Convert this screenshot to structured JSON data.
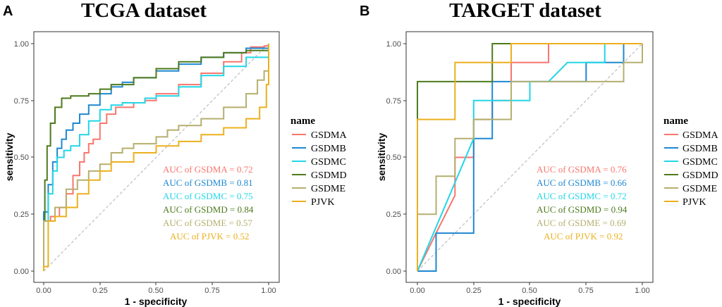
{
  "chart_data": [
    {
      "type": "line",
      "panel_letter": "A",
      "title": "TCGA dataset",
      "xlabel": "1 - specificity",
      "ylabel": "sensitivity",
      "xlim": [
        0,
        1
      ],
      "ylim": [
        0,
        1
      ],
      "xticks": [
        "0.00",
        "0.25",
        "0.50",
        "0.75",
        "1.00"
      ],
      "yticks": [
        "0.00",
        "0.25",
        "0.50",
        "0.75",
        "1.00"
      ],
      "legend_title": "name",
      "legend_position": "right",
      "reference_line": "diagonal dashed",
      "series": [
        {
          "name": "GSDMA",
          "color": "#F8766D",
          "auc_text": "AUC of GSDMA = ",
          "auc": "0.72",
          "points": [
            [
              0,
              0
            ],
            [
              0,
              0.22
            ],
            [
              0.03,
              0.24
            ],
            [
              0.07,
              0.28
            ],
            [
              0.1,
              0.34
            ],
            [
              0.13,
              0.42
            ],
            [
              0.16,
              0.48
            ],
            [
              0.18,
              0.52
            ],
            [
              0.2,
              0.56
            ],
            [
              0.22,
              0.58
            ],
            [
              0.25,
              0.65
            ],
            [
              0.28,
              0.69
            ],
            [
              0.32,
              0.72
            ],
            [
              0.4,
              0.74
            ],
            [
              0.45,
              0.75
            ],
            [
              0.5,
              0.78
            ],
            [
              0.6,
              0.82
            ],
            [
              0.7,
              0.87
            ],
            [
              0.8,
              0.92
            ],
            [
              0.88,
              0.96
            ],
            [
              0.92,
              0.985
            ],
            [
              0.98,
              0.99
            ],
            [
              1,
              1
            ]
          ]
        },
        {
          "name": "GSDMB",
          "color": "#1E88D0",
          "auc_text": "AUC of GSDMB = ",
          "auc": "0.81",
          "points": [
            [
              0,
              0
            ],
            [
              0,
              0.26
            ],
            [
              0.02,
              0.38
            ],
            [
              0.04,
              0.48
            ],
            [
              0.06,
              0.54
            ],
            [
              0.08,
              0.58
            ],
            [
              0.1,
              0.62
            ],
            [
              0.13,
              0.65
            ],
            [
              0.16,
              0.69
            ],
            [
              0.2,
              0.73
            ],
            [
              0.25,
              0.78
            ],
            [
              0.3,
              0.81
            ],
            [
              0.35,
              0.83
            ],
            [
              0.4,
              0.85
            ],
            [
              0.5,
              0.88
            ],
            [
              0.6,
              0.91
            ],
            [
              0.7,
              0.94
            ],
            [
              0.8,
              0.96
            ],
            [
              0.9,
              0.98
            ],
            [
              0.96,
              0.98
            ],
            [
              1,
              1
            ]
          ]
        },
        {
          "name": "GSDMC",
          "color": "#22D6E6",
          "auc_text": "AUC of GSDMC = ",
          "auc": "0.75",
          "points": [
            [
              0,
              0
            ],
            [
              0,
              0.22
            ],
            [
              0.02,
              0.34
            ],
            [
              0.04,
              0.44
            ],
            [
              0.06,
              0.5
            ],
            [
              0.09,
              0.53
            ],
            [
              0.12,
              0.55
            ],
            [
              0.16,
              0.6
            ],
            [
              0.2,
              0.66
            ],
            [
              0.25,
              0.71
            ],
            [
              0.3,
              0.73
            ],
            [
              0.35,
              0.74
            ],
            [
              0.45,
              0.76
            ],
            [
              0.5,
              0.77
            ],
            [
              0.6,
              0.81
            ],
            [
              0.7,
              0.86
            ],
            [
              0.8,
              0.9
            ],
            [
              0.9,
              0.94
            ],
            [
              1,
              1
            ]
          ]
        },
        {
          "name": "GSDMD",
          "color": "#4E7A1C",
          "auc_text": "AUC of GSDMD = ",
          "auc": "0.84",
          "points": [
            [
              0,
              0
            ],
            [
              0,
              0.22
            ],
            [
              0.005,
              0.4
            ],
            [
              0.015,
              0.55
            ],
            [
              0.03,
              0.65
            ],
            [
              0.05,
              0.72
            ],
            [
              0.08,
              0.76
            ],
            [
              0.12,
              0.77
            ],
            [
              0.16,
              0.77
            ],
            [
              0.2,
              0.78
            ],
            [
              0.25,
              0.8
            ],
            [
              0.3,
              0.82
            ],
            [
              0.4,
              0.85
            ],
            [
              0.5,
              0.89
            ],
            [
              0.6,
              0.92
            ],
            [
              0.7,
              0.94
            ],
            [
              0.8,
              0.96
            ],
            [
              0.9,
              0.97
            ],
            [
              1,
              1
            ]
          ]
        },
        {
          "name": "GSDME",
          "color": "#B5AF6E",
          "auc_text": "AUC of GSDME = ",
          "auc": "0.57",
          "points": [
            [
              0,
              0
            ],
            [
              0,
              0.22
            ],
            [
              0.05,
              0.28
            ],
            [
              0.1,
              0.36
            ],
            [
              0.15,
              0.4
            ],
            [
              0.2,
              0.44
            ],
            [
              0.25,
              0.47
            ],
            [
              0.3,
              0.52
            ],
            [
              0.35,
              0.54
            ],
            [
              0.4,
              0.56
            ],
            [
              0.5,
              0.59
            ],
            [
              0.55,
              0.62
            ],
            [
              0.6,
              0.64
            ],
            [
              0.7,
              0.67
            ],
            [
              0.8,
              0.72
            ],
            [
              0.9,
              0.78
            ],
            [
              0.95,
              0.84
            ],
            [
              0.98,
              0.88
            ],
            [
              1,
              1
            ]
          ]
        },
        {
          "name": "PJVK",
          "color": "#EBB01E",
          "auc_text": "AUC of PJVK = ",
          "auc": "0.52",
          "points": [
            [
              0,
              0
            ],
            [
              0,
              0.02
            ],
            [
              0.02,
              0.22
            ],
            [
              0.05,
              0.24
            ],
            [
              0.1,
              0.28
            ],
            [
              0.15,
              0.34
            ],
            [
              0.2,
              0.4
            ],
            [
              0.25,
              0.44
            ],
            [
              0.3,
              0.48
            ],
            [
              0.4,
              0.52
            ],
            [
              0.5,
              0.55
            ],
            [
              0.6,
              0.57
            ],
            [
              0.7,
              0.6
            ],
            [
              0.8,
              0.63
            ],
            [
              0.9,
              0.67
            ],
            [
              0.96,
              0.72
            ],
            [
              0.99,
              0.82
            ],
            [
              1,
              1
            ]
          ]
        }
      ]
    },
    {
      "type": "line",
      "panel_letter": "B",
      "title": "TARGET dataset",
      "xlabel": "1 - specificity",
      "ylabel": "sensitivity",
      "xlim": [
        0,
        1
      ],
      "ylim": [
        0,
        1
      ],
      "xticks": [
        "0.00",
        "0.25",
        "0.50",
        "0.75",
        "1.00"
      ],
      "yticks": [
        "0.00",
        "0.25",
        "0.50",
        "0.75",
        "1.00"
      ],
      "legend_title": "name",
      "legend_position": "right",
      "reference_line": "diagonal dashed",
      "series": [
        {
          "name": "GSDMA",
          "color": "#F8766D",
          "auc_text": "AUC of GSDMA = ",
          "auc": "0.76",
          "points": [
            [
              0,
              0
            ],
            [
              0.083,
              0.167
            ],
            [
              0.167,
              0.333
            ],
            [
              0.167,
              0.5
            ],
            [
              0.25,
              0.5
            ],
            [
              0.25,
              0.667
            ],
            [
              0.333,
              0.667
            ],
            [
              0.333,
              0.75
            ],
            [
              0.417,
              0.75
            ],
            [
              0.417,
              0.917
            ],
            [
              0.583,
              0.917
            ],
            [
              0.583,
              1
            ],
            [
              1,
              1
            ]
          ]
        },
        {
          "name": "GSDMB",
          "color": "#1E88D0",
          "auc_text": "AUC of GSDMB = ",
          "auc": "0.66",
          "points": [
            [
              0,
              0
            ],
            [
              0.083,
              0
            ],
            [
              0.083,
              0.167
            ],
            [
              0.25,
              0.167
            ],
            [
              0.25,
              0.583
            ],
            [
              0.333,
              0.583
            ],
            [
              0.333,
              0.833
            ],
            [
              0.75,
              0.833
            ],
            [
              0.75,
              0.917
            ],
            [
              0.917,
              0.917
            ],
            [
              0.917,
              1
            ],
            [
              1,
              1
            ]
          ]
        },
        {
          "name": "GSDMC",
          "color": "#22D6E6",
          "auc_text": "AUC of GSDMC = ",
          "auc": "0.72",
          "points": [
            [
              0,
              0
            ],
            [
              0.25,
              0.583
            ],
            [
              0.25,
              0.75
            ],
            [
              0.5,
              0.75
            ],
            [
              0.5,
              0.833
            ],
            [
              0.583,
              0.833
            ],
            [
              0.667,
              0.917
            ],
            [
              0.833,
              0.917
            ],
            [
              0.833,
              1
            ],
            [
              1,
              1
            ]
          ]
        },
        {
          "name": "GSDMD",
          "color": "#4E7A1C",
          "auc_text": "AUC of GSDMD = ",
          "auc": "0.94",
          "points": [
            [
              0,
              0
            ],
            [
              0,
              0.833
            ],
            [
              0.333,
              0.833
            ],
            [
              0.333,
              0.917
            ],
            [
              0.333,
              1
            ],
            [
              1,
              1
            ]
          ]
        },
        {
          "name": "GSDME",
          "color": "#B5AF6E",
          "auc_text": "AUC of GSDME = ",
          "auc": "0.69",
          "points": [
            [
              0,
              0
            ],
            [
              0,
              0.25
            ],
            [
              0.083,
              0.25
            ],
            [
              0.083,
              0.417
            ],
            [
              0.167,
              0.417
            ],
            [
              0.167,
              0.583
            ],
            [
              0.25,
              0.583
            ],
            [
              0.25,
              0.667
            ],
            [
              0.417,
              0.667
            ],
            [
              0.417,
              0.833
            ],
            [
              0.917,
              0.833
            ],
            [
              0.917,
              0.917
            ],
            [
              1,
              0.917
            ],
            [
              1,
              1
            ]
          ]
        },
        {
          "name": "PJVK",
          "color": "#EBB01E",
          "auc_text": "AUC of PJVK = ",
          "auc": "0.92",
          "points": [
            [
              0,
              0
            ],
            [
              0,
              0.667
            ],
            [
              0.167,
              0.667
            ],
            [
              0.167,
              0.917
            ],
            [
              0.417,
              0.917
            ],
            [
              0.417,
              1
            ],
            [
              1,
              1
            ]
          ]
        }
      ]
    }
  ]
}
